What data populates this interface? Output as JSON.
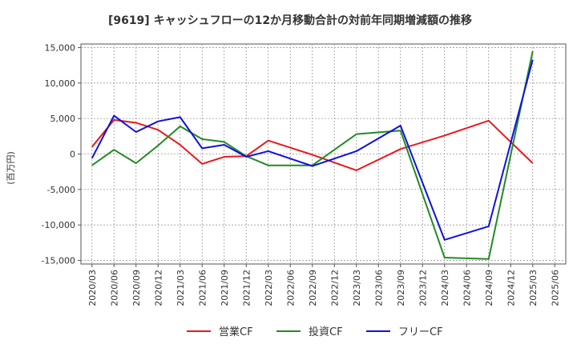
{
  "chart_data": {
    "type": "line",
    "title": "[9619]  キャッシュフローの12か月移動合計の対前年同期増減額の推移",
    "ylabel": "(百万円)",
    "xlabel": "",
    "ylim": [
      -15500,
      15500
    ],
    "yticks": [
      15000,
      10000,
      5000,
      0,
      -5000,
      -10000,
      -15000
    ],
    "ytick_labels": [
      "15,000",
      "10,000",
      "5,000",
      "0",
      "-5,000",
      "-10,000",
      "-15,000"
    ],
    "x_labels": [
      "2020/03",
      "2020/06",
      "2020/09",
      "2020/12",
      "2021/03",
      "2021/06",
      "2021/09",
      "2021/12",
      "2022/03",
      "2022/06",
      "2022/09",
      "2022/12",
      "2023/03",
      "2023/06",
      "2023/09",
      "2023/12",
      "2024/03",
      "2024/06",
      "2024/09",
      "2024/12",
      "2025/03",
      "2025/06"
    ],
    "grid": true,
    "legend_position": "bottom",
    "series": [
      {
        "name": "営業CF",
        "color": "#e8191e",
        "points": [
          {
            "x": "2020/03",
            "y": 1000
          },
          {
            "x": "2020/06",
            "y": 4800
          },
          {
            "x": "2020/09",
            "y": 4400
          },
          {
            "x": "2020/12",
            "y": 3400
          },
          {
            "x": "2021/03",
            "y": 1300
          },
          {
            "x": "2021/06",
            "y": -1400
          },
          {
            "x": "2021/09",
            "y": -400
          },
          {
            "x": "2021/12",
            "y": -300
          },
          {
            "x": "2022/03",
            "y": 1900
          },
          {
            "x": "2022/09",
            "y": -100
          },
          {
            "x": "2023/03",
            "y": -2300
          },
          {
            "x": "2023/09",
            "y": 700
          },
          {
            "x": "2024/03",
            "y": 2600
          },
          {
            "x": "2024/09",
            "y": 4700
          },
          {
            "x": "2025/03",
            "y": -1300
          }
        ]
      },
      {
        "name": "投資CF",
        "color": "#228b22",
        "points": [
          {
            "x": "2020/03",
            "y": -1600
          },
          {
            "x": "2020/06",
            "y": 600
          },
          {
            "x": "2020/09",
            "y": -1300
          },
          {
            "x": "2020/12",
            "y": 1200
          },
          {
            "x": "2021/03",
            "y": 3900
          },
          {
            "x": "2021/06",
            "y": 2100
          },
          {
            "x": "2021/09",
            "y": 1700
          },
          {
            "x": "2021/12",
            "y": -300
          },
          {
            "x": "2022/03",
            "y": -1600
          },
          {
            "x": "2022/06",
            "y": -1600
          },
          {
            "x": "2022/09",
            "y": -1600
          },
          {
            "x": "2023/03",
            "y": 2800
          },
          {
            "x": "2023/09",
            "y": 3300
          },
          {
            "x": "2024/03",
            "y": -14600
          },
          {
            "x": "2024/09",
            "y": -14800
          },
          {
            "x": "2025/03",
            "y": 14500
          }
        ]
      },
      {
        "name": "フリーCF",
        "color": "#1010e0",
        "points": [
          {
            "x": "2020/03",
            "y": -600
          },
          {
            "x": "2020/06",
            "y": 5400
          },
          {
            "x": "2020/09",
            "y": 3100
          },
          {
            "x": "2020/12",
            "y": 4600
          },
          {
            "x": "2021/03",
            "y": 5200
          },
          {
            "x": "2021/06",
            "y": 800
          },
          {
            "x": "2021/09",
            "y": 1300
          },
          {
            "x": "2021/12",
            "y": -400
          },
          {
            "x": "2022/03",
            "y": 400
          },
          {
            "x": "2022/09",
            "y": -1700
          },
          {
            "x": "2023/03",
            "y": 400
          },
          {
            "x": "2023/09",
            "y": 4000
          },
          {
            "x": "2024/03",
            "y": -12100
          },
          {
            "x": "2024/09",
            "y": -10200
          },
          {
            "x": "2025/03",
            "y": 13300
          }
        ]
      }
    ]
  }
}
